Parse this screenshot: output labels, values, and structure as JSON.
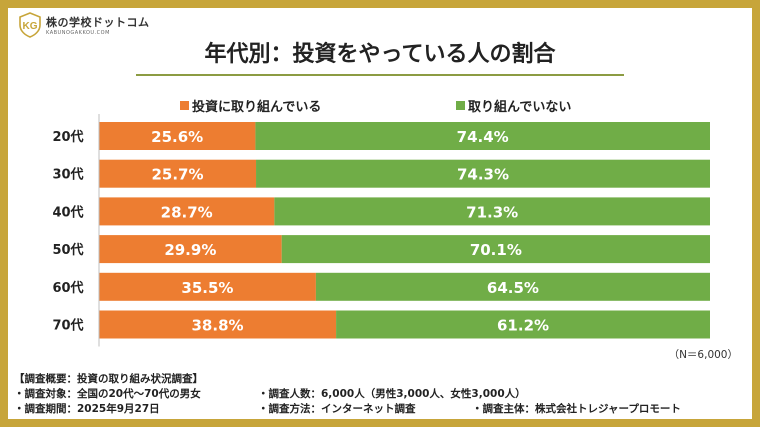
{
  "brand": {
    "name": "株の学校ドットコム",
    "sub": "KABUNOGAKKOU.COM"
  },
  "title": "年代別：投資をやっている人の割合",
  "note": "（N＝6,000）",
  "colors": {
    "invest": "#ED7D31",
    "not_invest": "#70AD47",
    "frame": "#C7A53A",
    "rule": "#8C9C43"
  },
  "chart_data": {
    "type": "bar",
    "stacked": true,
    "orientation": "horizontal",
    "percent_stacked": true,
    "categories": [
      "20代",
      "30代",
      "40代",
      "50代",
      "60代",
      "70代"
    ],
    "series": [
      {
        "name": "投資に取り組んでいる",
        "values": [
          25.6,
          25.7,
          28.7,
          29.9,
          35.5,
          38.8
        ],
        "labels": [
          "25.6%",
          "25.7%",
          "28.7%",
          "29.9%",
          "35.5%",
          "38.8%"
        ]
      },
      {
        "name": "取り組んでいない",
        "values": [
          74.4,
          74.3,
          71.3,
          70.1,
          64.5,
          61.2
        ],
        "labels": [
          "74.4%",
          "74.3%",
          "71.3%",
          "70.1%",
          "64.5%",
          "61.2%"
        ]
      }
    ],
    "xlim": [
      0,
      100
    ],
    "legend": "top-center",
    "grid": false
  },
  "footer": {
    "heading": "【調査概要：投資の取り組み状況調査】",
    "subject": "・調査対象：全国の20代～70代の男女",
    "count": "・調査人数：6,000人（男性3,000人、女性3,000人）",
    "period": "・調査期間：2025年9月27日",
    "method": "・調査方法：インターネット調査",
    "organizer": "・調査主体：株式会社トレジャープロモート"
  }
}
